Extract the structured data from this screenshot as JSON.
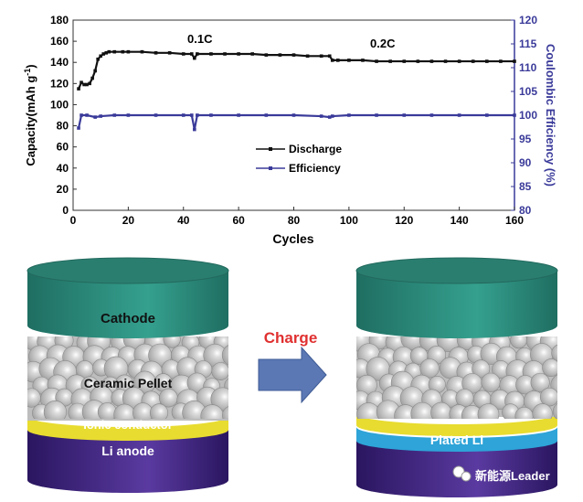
{
  "chart_data": {
    "type": "line",
    "xlabel": "Cycles",
    "ylabel": "Capacity(mAh g-1)",
    "ylabel_parts": {
      "main": "Capacity(mAh g",
      "sup": "-1",
      "end": ")"
    },
    "y2label": "Coulombic Efficiency (%)",
    "xlim": [
      0,
      160
    ],
    "ylim": [
      0,
      180
    ],
    "y2lim": [
      80,
      120
    ],
    "xticks": [
      "0",
      "20",
      "40",
      "60",
      "80",
      "100",
      "120",
      "140",
      "160"
    ],
    "yticks": [
      "0",
      "20",
      "40",
      "60",
      "80",
      "100",
      "120",
      "140",
      "160",
      "180"
    ],
    "y2ticks": [
      "80",
      "85",
      "90",
      "95",
      "100",
      "105",
      "110",
      "115",
      "120"
    ],
    "grid": false,
    "legend_position": "center",
    "annotations": [
      "0.1C",
      "0.2C"
    ],
    "series": [
      {
        "name": "Discharge",
        "axis": "left",
        "color": "#111111",
        "x": [
          2,
          3,
          4,
          5,
          6,
          7,
          8,
          9,
          10,
          11,
          12,
          13,
          15,
          18,
          20,
          25,
          30,
          35,
          40,
          43,
          44,
          45,
          50,
          55,
          60,
          65,
          70,
          75,
          80,
          85,
          90,
          93,
          94,
          96,
          100,
          105,
          110,
          115,
          120,
          125,
          130,
          135,
          140,
          145,
          150,
          155,
          160
        ],
        "y": [
          115,
          121,
          119,
          119,
          120,
          125,
          132,
          143,
          146,
          148,
          149,
          150,
          150,
          150,
          150,
          150,
          149,
          149,
          148,
          148,
          144,
          148,
          148,
          148,
          148,
          148,
          147,
          147,
          147,
          146,
          146,
          146,
          142,
          142,
          142,
          142,
          141,
          141,
          141,
          141,
          141,
          141,
          141,
          141,
          141,
          141,
          141
        ]
      },
      {
        "name": "Efficiency",
        "axis": "right",
        "color": "#3a3a9a",
        "x": [
          2,
          3,
          5,
          8,
          10,
          15,
          20,
          30,
          40,
          43,
          44,
          45,
          50,
          60,
          70,
          80,
          90,
          93,
          94,
          100,
          110,
          120,
          130,
          140,
          150,
          160
        ],
        "y": [
          97.3,
          100,
          100,
          99.6,
          99.8,
          100,
          100,
          100,
          100,
          100,
          97,
          100,
          100,
          100,
          100,
          100,
          99.8,
          99.6,
          99.8,
          100,
          100,
          100,
          100,
          100,
          100,
          100
        ]
      }
    ]
  },
  "diagram": {
    "left_cell": {
      "cathode": "Cathode",
      "pellet": "Ceramic Pellet",
      "conductor": "Ionic conductor",
      "anode": "Li  anode"
    },
    "arrow_label": "Charge",
    "right_cell": {
      "plated": "Plated Li"
    },
    "colors": {
      "cathode": "#2e8a7a",
      "pellet": "#c8c8c8",
      "conductor": "#e8dc30",
      "anode": "#3a1f78",
      "plated": "#2ea4d8",
      "arrow": "#5b78b4",
      "charge": "#e03030"
    }
  },
  "watermark": "新能源Leader"
}
